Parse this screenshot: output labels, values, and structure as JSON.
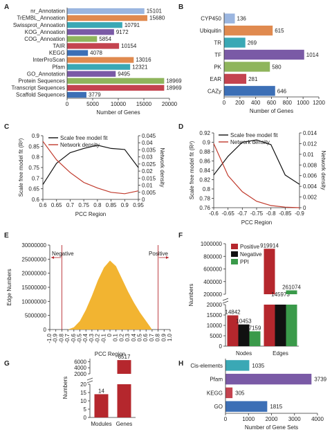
{
  "chart_data": [
    {
      "panel": "A",
      "type": "bar",
      "orientation": "horizontal",
      "categories": [
        "nr_Annotation",
        "TrEMBL_Annoation",
        "Swissprot_Annoation",
        "KOG_Annoation",
        "COG_Annoation",
        "TAIR",
        "KEGG",
        "InterProScan",
        "Pfam",
        "GO_Annotation",
        "Protein Sequences",
        "Transcript Sequences",
        "Scaffold Sequences"
      ],
      "values": [
        15101,
        15680,
        10791,
        9172,
        5854,
        10154,
        4078,
        13016,
        12321,
        9495,
        18969,
        18969,
        3779
      ],
      "colors": [
        "#9bb6e0",
        "#e08a4f",
        "#3aa8b5",
        "#7a5aa6",
        "#8fb55c",
        "#c4434f",
        "#3c6fb6",
        "#e08a4f",
        "#3aa8b5",
        "#7a5aa6",
        "#8fb55c",
        "#c4434f",
        "#3c6fb6"
      ],
      "xlabel": "Number of Genes",
      "xticks": [
        0,
        5000,
        10000,
        15000,
        20000
      ],
      "xlim": [
        0,
        20000
      ]
    },
    {
      "panel": "B",
      "type": "bar",
      "orientation": "horizontal",
      "categories": [
        "CYP450",
        "Ubiquitin",
        "TR",
        "TF",
        "PK",
        "EAR",
        "CAZy"
      ],
      "values": [
        136,
        615,
        269,
        1014,
        580,
        281,
        646
      ],
      "colors": [
        "#9bb6e0",
        "#e08a4f",
        "#3aa8b5",
        "#7a5aa6",
        "#8fb55c",
        "#c4434f",
        "#3c6fb6"
      ],
      "xlabel": "Number of Genes",
      "xticks": [
        0,
        200,
        400,
        600,
        800,
        1000,
        1200
      ],
      "xlim": [
        0,
        1200
      ]
    },
    {
      "panel": "C",
      "type": "line",
      "xlabel": "PCC Region",
      "ylabel": "Scale free model fit (R²)",
      "y2label": "Network density",
      "x": [
        0.6,
        0.65,
        0.7,
        0.75,
        0.8,
        0.85,
        0.9,
        0.95
      ],
      "xticks": [
        "0.6",
        "0.65",
        "0.7",
        "0.75",
        "0.8",
        "0.85",
        "0.9",
        "0.95"
      ],
      "ylim": [
        0.6,
        0.9
      ],
      "yticks": [
        "0.6",
        "0.65",
        "0.7",
        "0.75",
        "0.8",
        "0.85",
        "0.9"
      ],
      "y2lim": [
        0,
        0.045
      ],
      "y2ticks": [
        "0",
        "0.005",
        "0.01",
        "0.015",
        "0.02",
        "0.025",
        "0.03",
        "0.035",
        "0.04",
        "0.045"
      ],
      "series": [
        {
          "name": "Scale free model fit",
          "axis": "left",
          "color": "#111111",
          "values": [
            0.67,
            0.77,
            0.82,
            0.84,
            0.855,
            0.84,
            0.835,
            0.75
          ]
        },
        {
          "name": "Network density",
          "axis": "right",
          "color": "#c0392b",
          "values": [
            0.041,
            0.028,
            0.019,
            0.012,
            0.008,
            0.005,
            0.004,
            0.006
          ]
        }
      ]
    },
    {
      "panel": "D",
      "type": "line",
      "xlabel": "PCC Region",
      "ylabel": "Scale free model fit (R²)",
      "y2label": "Network density",
      "x": [
        -0.6,
        -0.65,
        -0.7,
        -0.75,
        -0.8,
        -0.85,
        -0.9
      ],
      "xticks": [
        "-0.6",
        "-0.65",
        "-0.7",
        "-0.75",
        "-0.8",
        "-0.85",
        "-0.9"
      ],
      "ylim": [
        0.76,
        0.92
      ],
      "yticks": [
        "0.76",
        "0.78",
        "0.8",
        "0.82",
        "0.84",
        "0.86",
        "0.88",
        "0.9",
        "0.92"
      ],
      "y2lim": [
        0,
        0.014
      ],
      "y2ticks": [
        "0",
        "0.002",
        "0.004",
        "0.006",
        "0.008",
        "0.01",
        "0.012",
        "0.014"
      ],
      "series": [
        {
          "name": "Scale free model fit",
          "axis": "left",
          "color": "#111111",
          "values": [
            0.83,
            0.87,
            0.9,
            0.905,
            0.895,
            0.83,
            0.81
          ]
        },
        {
          "name": "Network density",
          "axis": "right",
          "color": "#c0392b",
          "values": [
            0.012,
            0.006,
            0.003,
            0.0012,
            0.0004,
            0.0001,
            0.0
          ]
        }
      ]
    },
    {
      "panel": "E",
      "type": "area",
      "xlabel": "PCC Region",
      "ylabel": "Edge Numbers",
      "color": "#f2b431",
      "x": [
        -0.7,
        -0.6,
        -0.5,
        -0.4,
        -0.3,
        -0.2,
        -0.1,
        0,
        0.1,
        0.2,
        0.3,
        0.4,
        0.5,
        0.6,
        0.7
      ],
      "y": [
        0,
        800000,
        3000000,
        7000000,
        12000000,
        17500000,
        22000000,
        24500000,
        22500000,
        18000000,
        13500000,
        9500000,
        6000000,
        3000000,
        0
      ],
      "xticks": [
        "-1.0",
        "-0.9",
        "-0.8",
        "-0.7",
        "-0.6",
        "-0.5",
        "-0.4",
        "-0.3",
        "-0.2",
        "-0.1",
        "0",
        "0.1",
        "0.2",
        "0.3",
        "0.4",
        "0.5",
        "0.6",
        "0.7",
        "0.8",
        "0.9",
        "1.0"
      ],
      "ylim": [
        0,
        30000000
      ],
      "yticks": [
        "0",
        "5000000",
        "10000000",
        "15000000",
        "20000000",
        "25000000",
        "30000000"
      ],
      "annotations": [
        "Negative",
        "Positive"
      ]
    },
    {
      "panel": "F",
      "type": "bar",
      "ylabel": "Numbers",
      "categories": [
        "Nodes",
        "Edges"
      ],
      "legend": [
        "Positive",
        "Negative",
        "PPI"
      ],
      "colors": [
        "#b5272d",
        "#111111",
        "#3a9a4a"
      ],
      "series": [
        {
          "name": "Positive",
          "values": [
            14842,
            919914
          ]
        },
        {
          "name": "Negative",
          "values": [
            10453,
            145973
          ]
        },
        {
          "name": "PPI",
          "values": [
            7159,
            261074
          ]
        }
      ],
      "yticks_low": [
        "0",
        "5000",
        "10000",
        "15000",
        "20000"
      ],
      "yticks_high": [
        "200000",
        "400000",
        "600000",
        "800000",
        "1000000"
      ]
    },
    {
      "panel": "G",
      "type": "bar",
      "ylabel": "Numbers",
      "categories": [
        "Modules",
        "Genes"
      ],
      "values": [
        14,
        6517
      ],
      "color": "#b5272d",
      "yticks_low": [
        "0",
        "5",
        "10",
        "15",
        "20"
      ],
      "yticks_high": [
        "2000",
        "4000",
        "6000"
      ]
    },
    {
      "panel": "H",
      "type": "bar",
      "orientation": "horizontal",
      "categories": [
        "Cis-elements",
        "Pfam",
        "KEGG",
        "GO"
      ],
      "values": [
        1035,
        3739,
        305,
        1815
      ],
      "colors": [
        "#3aa8b5",
        "#7a5aa6",
        "#c4434f",
        "#3c6fb6"
      ],
      "xlabel": "Number of Gene Sets",
      "xticks": [
        0,
        1000,
        2000,
        3000,
        4000
      ],
      "xlim": [
        0,
        4000
      ]
    }
  ]
}
